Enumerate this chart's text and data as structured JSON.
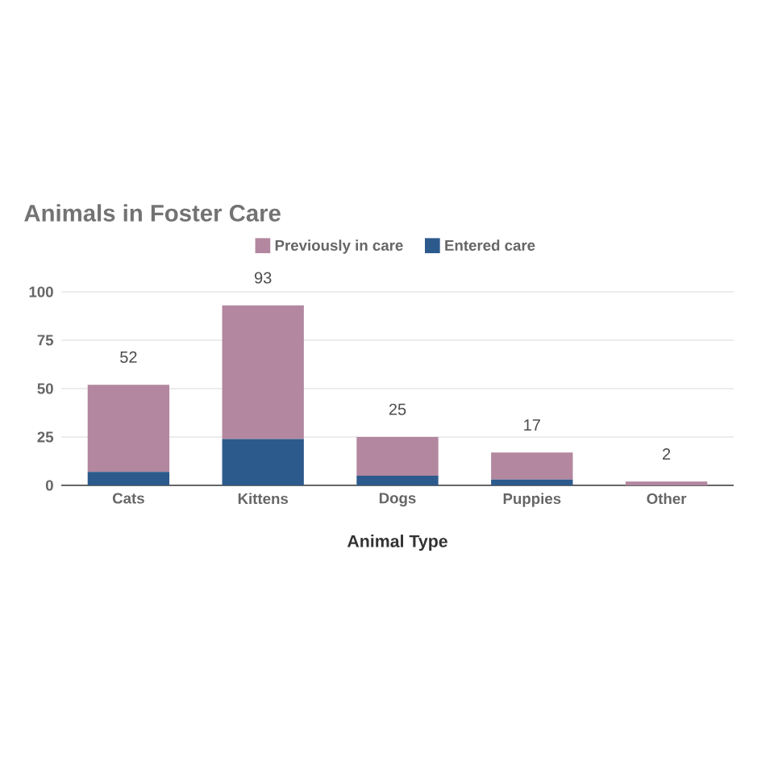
{
  "chart_data": {
    "type": "bar",
    "title": "Animals in Foster Care",
    "xlabel": "Animal Type",
    "categories": [
      "Cats",
      "Kittens",
      "Dogs",
      "Puppies",
      "Other"
    ],
    "series": [
      {
        "name": "Entered care",
        "color": "#2d5a8c",
        "values": [
          7,
          24,
          5,
          3,
          0
        ]
      },
      {
        "name": "Previously in care",
        "color": "#b3879f",
        "values": [
          45,
          69,
          20,
          14,
          2
        ]
      }
    ],
    "stacked": true,
    "totals": [
      "52",
      "93",
      "25",
      "17",
      "2"
    ],
    "ylim": [
      0,
      100
    ],
    "yticks": [
      0,
      25,
      50,
      75,
      100
    ],
    "grid": "y",
    "legend": "top"
  }
}
